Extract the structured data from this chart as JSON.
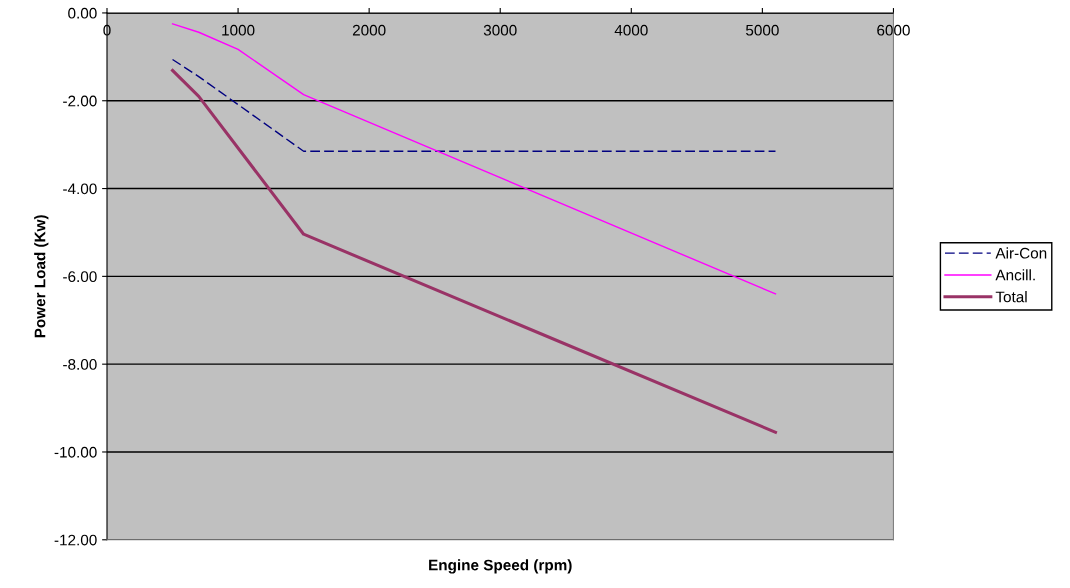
{
  "chart_data": {
    "type": "line",
    "xlabel": "Engine Speed (rpm)",
    "ylabel": "Power Load (Kw)",
    "xlim": [
      0,
      6000
    ],
    "xticks": [
      0,
      1000,
      2000,
      3000,
      4000,
      5000,
      6000
    ],
    "ylim": [
      -12,
      0
    ],
    "yticks": [
      {
        "value": 0,
        "label": "0.00"
      },
      {
        "value": -2,
        "label": "-2.00"
      },
      {
        "value": -4,
        "label": "-4.00"
      },
      {
        "value": -6,
        "label": "-6.00"
      },
      {
        "value": -8,
        "label": "-8.00"
      },
      {
        "value": -10,
        "label": "-10.00"
      },
      {
        "value": -12,
        "label": "-12.00"
      }
    ],
    "grid": "y",
    "legend": "right",
    "marker": "none",
    "series": [
      {
        "name": "Air-Con",
        "color": "#000080",
        "line_style": "dashed",
        "x": [
          500,
          700,
          1500,
          5100
        ],
        "values": [
          -1.06,
          -1.45,
          -3.15,
          -3.15
        ]
      },
      {
        "name": "Ancill.",
        "color": "#ff00ff",
        "line_style": "solid",
        "x": [
          500,
          700,
          1000,
          1500,
          5100
        ],
        "values": [
          -0.25,
          -0.44,
          -0.83,
          -1.86,
          -6.4
        ]
      },
      {
        "name": "Total",
        "color": "#993366",
        "line_style": "solid",
        "x": [
          500,
          700,
          1500,
          5100
        ],
        "values": [
          -1.31,
          -1.9,
          -5.04,
          -9.55
        ]
      }
    ]
  }
}
